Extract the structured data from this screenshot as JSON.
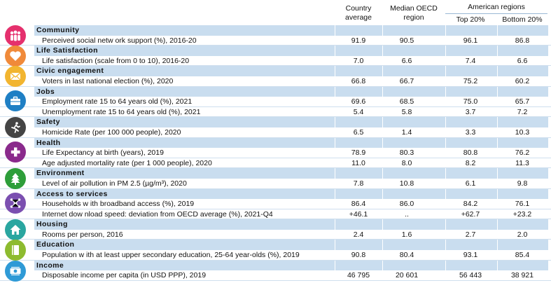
{
  "header": {
    "col1": "Country average",
    "col2": "Median OECD region",
    "regions": "American regions",
    "col3": "Top 20%",
    "col4": "Bottom 20%"
  },
  "sections": [
    {
      "title": "Community",
      "icon": "community-icon",
      "color": "#e5306d",
      "rows": [
        {
          "label": "Perceived social netw ork support (%), 2016-20",
          "v": [
            "91.9",
            "90.5",
            "96.1",
            "86.8"
          ]
        }
      ]
    },
    {
      "title": "Life Satisfaction",
      "icon": "heart-icon",
      "color": "#f08a3a",
      "rows": [
        {
          "label": "Life satisfaction (scale from 0 to 10), 2016-20",
          "v": [
            "7.0",
            "6.6",
            "7.4",
            "6.6"
          ]
        }
      ]
    },
    {
      "title": "Civic engagement",
      "icon": "envelope-icon",
      "color": "#f2b530",
      "rows": [
        {
          "label": "Voters in last national election (%), 2020",
          "v": [
            "66.8",
            "66.7",
            "75.2",
            "60.2"
          ]
        }
      ]
    },
    {
      "title": "Jobs",
      "icon": "briefcase-icon",
      "color": "#1f7fc4",
      "rows": [
        {
          "label": "Employment rate 15 to 64 years old (%), 2021",
          "v": [
            "69.6",
            "68.5",
            "75.0",
            "65.7"
          ]
        },
        {
          "label": "Unemployment rate 15 to 64 years old (%), 2021",
          "v": [
            "5.4",
            "5.8",
            "3.7",
            "7.2"
          ]
        }
      ]
    },
    {
      "title": "Safety",
      "icon": "running-person-icon",
      "color": "#444444",
      "rows": [
        {
          "label": "Homicide Rate (per 100 000 people), 2020",
          "v": [
            "6.5",
            "1.4",
            "3.3",
            "10.3"
          ]
        }
      ]
    },
    {
      "title": "Health",
      "icon": "cross-icon",
      "color": "#8a2a8c",
      "rows": [
        {
          "label": "Life Expectancy at birth (years), 2019",
          "v": [
            "78.9",
            "80.3",
            "80.8",
            "76.2"
          ]
        },
        {
          "label": "Age adjusted mortality rate (per 1 000 people), 2020",
          "v": [
            "11.0",
            "8.0",
            "8.2",
            "11.3"
          ]
        }
      ]
    },
    {
      "title": "Environment",
      "icon": "tree-icon",
      "color": "#2e9e3a",
      "rows": [
        {
          "label": "Level of air pollution in PM 2.5 (µg/m³), 2020",
          "v": [
            "7.8",
            "10.8",
            "6.1",
            "9.8"
          ]
        }
      ]
    },
    {
      "title": "Access to services",
      "icon": "network-icon",
      "color": "#7b4fb0",
      "rows": [
        {
          "label": "Households w ith broadband access (%), 2019",
          "v": [
            "86.4",
            "86.0",
            "84.2",
            "76.1"
          ]
        },
        {
          "label": "Internet dow nload speed: deviation from OECD average (%), 2021-Q4",
          "v": [
            "+46.1",
            "..",
            "+62.7",
            "+23.2"
          ]
        }
      ]
    },
    {
      "title": "Housing",
      "icon": "house-icon",
      "color": "#2aa6a0",
      "rows": [
        {
          "label": "Rooms per person, 2016",
          "v": [
            "2.4",
            "1.6",
            "2.7",
            "2.0"
          ]
        }
      ]
    },
    {
      "title": "Education",
      "icon": "book-icon",
      "color": "#8dbb2f",
      "rows": [
        {
          "label": "Population w ith at least upper secondary education, 25-64 year-olds  (%), 2019",
          "v": [
            "90.8",
            "80.4",
            "93.1",
            "85.4"
          ]
        }
      ]
    },
    {
      "title": "Income",
      "icon": "money-icon",
      "color": "#2f9ad6",
      "rows": [
        {
          "label": "Disposable income per capita (in USD PPP), 2019",
          "v": [
            "46 795",
            "20 601",
            "56 443",
            "38 921"
          ]
        }
      ]
    }
  ]
}
